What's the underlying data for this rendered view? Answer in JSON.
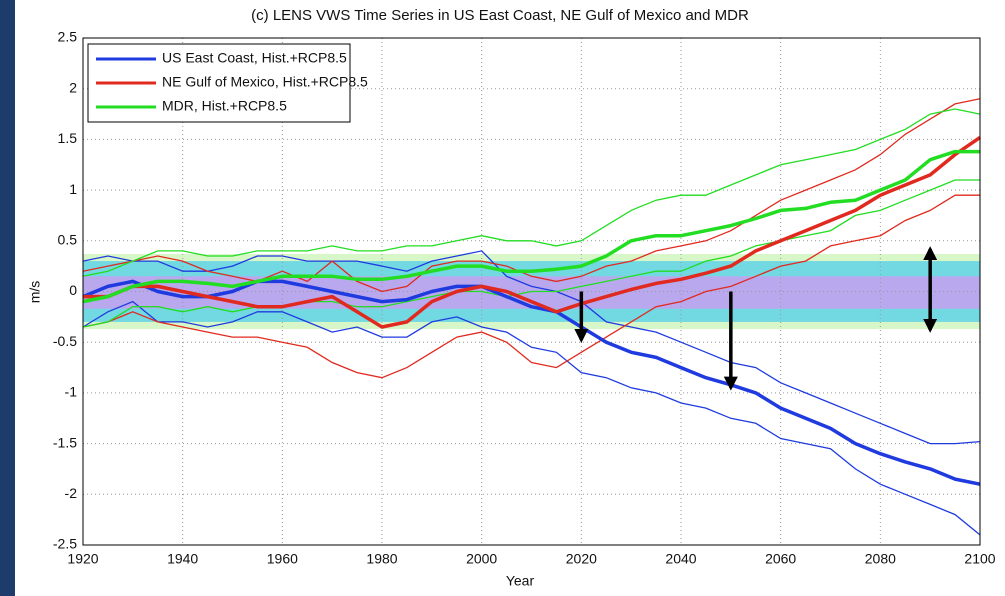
{
  "chart_data": {
    "type": "line",
    "title": "(c) LENS VWS Time Series in US East Coast, NE Gulf of Mexico and MDR",
    "x_label": "Year",
    "y_label": "m/s",
    "x": [
      1920,
      1925,
      1930,
      1935,
      1940,
      1945,
      1950,
      1955,
      1960,
      1965,
      1970,
      1975,
      1980,
      1985,
      1990,
      1995,
      2000,
      2005,
      2010,
      2015,
      2020,
      2025,
      2030,
      2035,
      2040,
      2045,
      2050,
      2055,
      2060,
      2065,
      2070,
      2075,
      2080,
      2085,
      2090,
      2095,
      2100
    ],
    "series": [
      {
        "name": "US East Coast, Hist.+RCP8.5",
        "color": "#1f3be0",
        "values": [
          -0.05,
          0.05,
          0.1,
          0.0,
          -0.05,
          -0.05,
          0.0,
          0.1,
          0.1,
          0.05,
          0.0,
          -0.05,
          -0.1,
          -0.08,
          0.0,
          0.05,
          0.05,
          -0.05,
          -0.15,
          -0.2,
          -0.35,
          -0.5,
          -0.6,
          -0.65,
          -0.75,
          -0.85,
          -0.92,
          -1.0,
          -1.15,
          -1.25,
          -1.35,
          -1.5,
          -1.6,
          -1.68,
          -1.75,
          -1.85,
          -1.9
        ],
        "upper": [
          0.3,
          0.35,
          0.3,
          0.3,
          0.2,
          0.2,
          0.25,
          0.35,
          0.35,
          0.3,
          0.3,
          0.3,
          0.25,
          0.2,
          0.3,
          0.35,
          0.4,
          0.15,
          0.05,
          0.0,
          -0.1,
          -0.3,
          -0.35,
          -0.4,
          -0.5,
          -0.6,
          -0.7,
          -0.75,
          -0.9,
          -1.0,
          -1.1,
          -1.2,
          -1.3,
          -1.4,
          -1.5,
          -1.5,
          -1.48
        ],
        "lower": [
          -0.35,
          -0.2,
          -0.1,
          -0.3,
          -0.3,
          -0.35,
          -0.3,
          -0.2,
          -0.2,
          -0.3,
          -0.4,
          -0.35,
          -0.45,
          -0.45,
          -0.3,
          -0.25,
          -0.35,
          -0.4,
          -0.55,
          -0.6,
          -0.8,
          -0.85,
          -0.95,
          -1.0,
          -1.1,
          -1.15,
          -1.25,
          -1.3,
          -1.45,
          -1.5,
          -1.55,
          -1.75,
          -1.9,
          -2.0,
          -2.1,
          -2.2,
          -2.4
        ]
      },
      {
        "name": "NE Gulf of Mexico, Hist.+RCP8.5",
        "color": "#e02a1f",
        "values": [
          -0.05,
          -0.05,
          0.05,
          0.05,
          0.0,
          -0.05,
          -0.1,
          -0.15,
          -0.15,
          -0.1,
          -0.05,
          -0.2,
          -0.35,
          -0.3,
          -0.1,
          0.0,
          0.05,
          0.0,
          -0.1,
          -0.2,
          -0.12,
          -0.05,
          0.02,
          0.08,
          0.12,
          0.18,
          0.25,
          0.4,
          0.5,
          0.6,
          0.7,
          0.8,
          0.95,
          1.05,
          1.15,
          1.35,
          1.52
        ],
        "upper": [
          0.2,
          0.25,
          0.3,
          0.35,
          0.3,
          0.2,
          0.15,
          0.1,
          0.2,
          0.1,
          0.3,
          0.1,
          0.0,
          0.05,
          0.25,
          0.3,
          0.3,
          0.25,
          0.15,
          0.1,
          0.15,
          0.25,
          0.3,
          0.4,
          0.45,
          0.5,
          0.6,
          0.75,
          0.9,
          1.0,
          1.1,
          1.2,
          1.35,
          1.55,
          1.7,
          1.85,
          1.9
        ],
        "lower": [
          -0.35,
          -0.3,
          -0.2,
          -0.3,
          -0.35,
          -0.4,
          -0.45,
          -0.45,
          -0.5,
          -0.55,
          -0.7,
          -0.8,
          -0.85,
          -0.75,
          -0.6,
          -0.45,
          -0.4,
          -0.5,
          -0.7,
          -0.75,
          -0.6,
          -0.45,
          -0.3,
          -0.15,
          -0.1,
          0.0,
          0.05,
          0.15,
          0.25,
          0.3,
          0.45,
          0.5,
          0.55,
          0.7,
          0.8,
          0.95,
          0.95
        ]
      },
      {
        "name": "MDR, Hist.+RCP8.5",
        "color": "#22dd22",
        "values": [
          -0.1,
          -0.05,
          0.05,
          0.1,
          0.1,
          0.08,
          0.05,
          0.1,
          0.15,
          0.15,
          0.15,
          0.12,
          0.12,
          0.15,
          0.2,
          0.25,
          0.25,
          0.2,
          0.2,
          0.22,
          0.25,
          0.35,
          0.5,
          0.55,
          0.55,
          0.6,
          0.65,
          0.72,
          0.8,
          0.82,
          0.88,
          0.9,
          1.0,
          1.1,
          1.3,
          1.38,
          1.38
        ],
        "upper": [
          0.15,
          0.2,
          0.3,
          0.4,
          0.4,
          0.35,
          0.35,
          0.4,
          0.4,
          0.4,
          0.45,
          0.4,
          0.4,
          0.45,
          0.45,
          0.5,
          0.55,
          0.5,
          0.5,
          0.45,
          0.5,
          0.65,
          0.8,
          0.9,
          0.95,
          0.95,
          1.05,
          1.15,
          1.25,
          1.3,
          1.35,
          1.4,
          1.5,
          1.6,
          1.75,
          1.8,
          1.75
        ],
        "lower": [
          -0.35,
          -0.3,
          -0.15,
          -0.15,
          -0.2,
          -0.15,
          -0.2,
          -0.15,
          -0.15,
          -0.1,
          -0.1,
          -0.15,
          -0.15,
          -0.1,
          -0.05,
          0.0,
          0.0,
          -0.05,
          0.0,
          0.0,
          0.05,
          0.1,
          0.15,
          0.2,
          0.2,
          0.3,
          0.35,
          0.45,
          0.5,
          0.55,
          0.6,
          0.75,
          0.8,
          0.9,
          1.0,
          1.1,
          1.1
        ]
      }
    ],
    "bands": [
      {
        "range": [
          -0.37,
          0.37
        ],
        "color": "#d8f7c8"
      },
      {
        "range": [
          -0.3,
          0.3
        ],
        "color": "#72d8e2"
      },
      {
        "range": [
          -0.17,
          0.15
        ],
        "color": "#b9a8ee"
      }
    ],
    "arrows": [
      {
        "x": 2020,
        "from": 0.0,
        "to": -0.48,
        "double": false
      },
      {
        "x": 2050,
        "from": 0.0,
        "to": -0.95,
        "double": false
      },
      {
        "x": 2090,
        "from": -0.38,
        "to": 0.42,
        "double": true
      }
    ],
    "xlim": [
      1920,
      2100
    ],
    "xticks": [
      1920,
      1940,
      1960,
      1980,
      2000,
      2020,
      2040,
      2060,
      2080,
      2100
    ],
    "ylim": [
      -2.5,
      2.5
    ],
    "yticks": [
      -2.5,
      -2,
      -1.5,
      -1,
      -0.5,
      0,
      0.5,
      1,
      1.5,
      2,
      2.5
    ],
    "grid": true,
    "legend": "upper left"
  }
}
